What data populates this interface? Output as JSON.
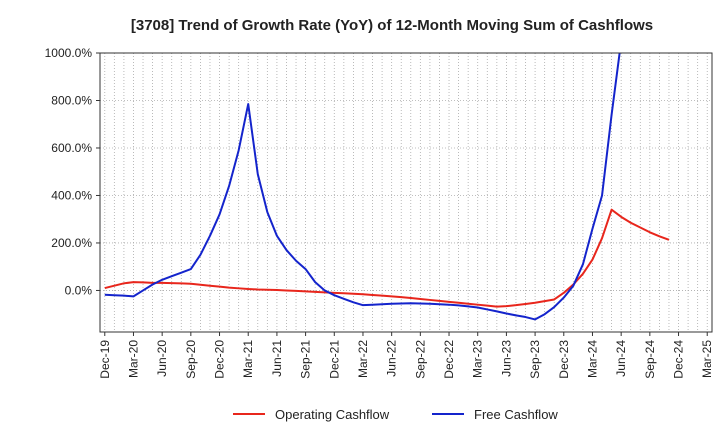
{
  "chart_data": {
    "type": "line",
    "title": "[3708]  Trend of Growth Rate (YoY) of 12-Month Moving Sum of Cashflows",
    "xlabel": "",
    "ylabel": "",
    "grid": true,
    "legend_position": "bottom",
    "ylim": [
      -175,
      1000
    ],
    "yticks": [
      0,
      200,
      400,
      600,
      800,
      1000
    ],
    "ytick_labels": [
      "0.0%",
      "200.0%",
      "400.0%",
      "600.0%",
      "800.0%",
      "1000.0%"
    ],
    "x": [
      "Dec-19",
      "Jan-20",
      "Feb-20",
      "Mar-20",
      "Apr-20",
      "May-20",
      "Jun-20",
      "Jul-20",
      "Aug-20",
      "Sep-20",
      "Oct-20",
      "Nov-20",
      "Dec-20",
      "Jan-21",
      "Feb-21",
      "Mar-21",
      "Apr-21",
      "May-21",
      "Jun-21",
      "Jul-21",
      "Aug-21",
      "Sep-21",
      "Oct-21",
      "Nov-21",
      "Dec-21",
      "Jan-22",
      "Feb-22",
      "Mar-22",
      "Apr-22",
      "May-22",
      "Jun-22",
      "Jul-22",
      "Aug-22",
      "Sep-22",
      "Oct-22",
      "Nov-22",
      "Dec-22",
      "Jan-23",
      "Feb-23",
      "Mar-23",
      "Apr-23",
      "May-23",
      "Jun-23",
      "Jul-23",
      "Aug-23",
      "Sep-23",
      "Oct-23",
      "Nov-23",
      "Dec-23",
      "Jan-24",
      "Feb-24",
      "Mar-24",
      "Apr-24",
      "May-24",
      "Jun-24",
      "Jul-24",
      "Aug-24",
      "Sep-24",
      "Oct-24",
      "Nov-24",
      "Dec-24",
      "Jan-25",
      "Feb-25",
      "Mar-25"
    ],
    "xtick_labels": [
      "Dec-19",
      "Mar-20",
      "Jun-20",
      "Sep-20",
      "Dec-20",
      "Mar-21",
      "Jun-21",
      "Sep-21",
      "Dec-21",
      "Mar-22",
      "Jun-22",
      "Sep-22",
      "Dec-22",
      "Mar-23",
      "Jun-23",
      "Sep-23",
      "Dec-23",
      "Mar-24",
      "Jun-24",
      "Sep-24",
      "Dec-24",
      "Mar-25"
    ],
    "series": [
      {
        "name": "Operating Cashflow",
        "color": "#e8261c",
        "values": [
          10,
          20,
          30,
          35,
          34,
          32,
          32,
          31,
          30,
          28,
          24,
          20,
          16,
          12,
          9,
          6,
          4,
          3,
          2,
          0,
          -2,
          -4,
          -6,
          -8,
          -10,
          -12,
          -14,
          -16,
          -19,
          -22,
          -25,
          -28,
          -32,
          -36,
          -40,
          -44,
          -48,
          -52,
          -56,
          -60,
          -64,
          -68,
          -66,
          -62,
          -57,
          -52,
          -45,
          -38,
          -10,
          25,
          70,
          130,
          220,
          340,
          310,
          285,
          265,
          245,
          228,
          213,
          null,
          null,
          null,
          null
        ]
      },
      {
        "name": "Free Cashflow",
        "color": "#1424cc",
        "values": [
          -18,
          -20,
          -22,
          -25,
          0,
          25,
          45,
          60,
          75,
          90,
          150,
          230,
          320,
          440,
          590,
          785,
          490,
          330,
          230,
          170,
          125,
          90,
          35,
          0,
          -20,
          -35,
          -50,
          -62,
          -60,
          -58,
          -56,
          -55,
          -54,
          -55,
          -56,
          -58,
          -60,
          -63,
          -67,
          -72,
          -80,
          -88,
          -97,
          -105,
          -112,
          -122,
          -100,
          -70,
          -30,
          20,
          110,
          260,
          400,
          740,
          1050,
          null,
          null,
          null,
          null,
          null,
          null,
          null,
          null,
          null
        ]
      }
    ]
  }
}
